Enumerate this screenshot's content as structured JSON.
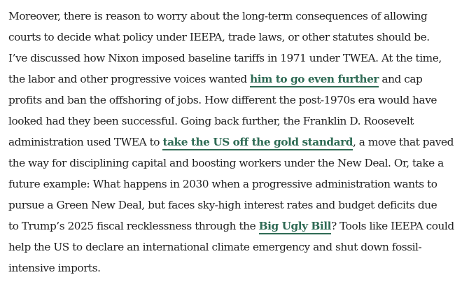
{
  "paragraph": {
    "lines": [
      {
        "text": "Moreover, there is reason to worry about the long-term consequences of allowing"
      },
      {
        "text": "courts to decide what policy under IEEPA, trade laws, or other statutes should be."
      },
      {
        "text": "I’ve discussed how Nixon imposed baseline tariffs in 1971 under TWEA. At the time,"
      },
      {
        "before": "the labor and other progressive voices wanted ",
        "link": "him to go even further",
        "after": " and cap"
      },
      {
        "text": "profits and ban the offshoring of jobs. How different the post-1970s era would have"
      },
      {
        "text": "looked had they been successful. Going back further, the Franklin D. Roosevelt"
      },
      {
        "before": "administration used TWEA to ",
        "link": "take the US off the gold standard",
        "after": ", a move that paved"
      },
      {
        "text": "the way for disciplining capital and boosting workers under the New Deal. Or, take a"
      },
      {
        "text": "future example: What happens in 2030 when a progressive administration wants to"
      },
      {
        "text": "pursue a Green New Deal, but faces sky-high interest rates and budget deficits due"
      },
      {
        "before": "to Trump’s 2025 fiscal recklessness through the ",
        "link": "Big Ugly Bill",
        "after": "? Tools like IEEPA could"
      },
      {
        "text": "help the US to declare an international climate emergency and shut down fossil-"
      },
      {
        "text": "intensive imports."
      }
    ]
  },
  "colors": {
    "text": "#1f1f1f",
    "link": "#2f6b55"
  }
}
